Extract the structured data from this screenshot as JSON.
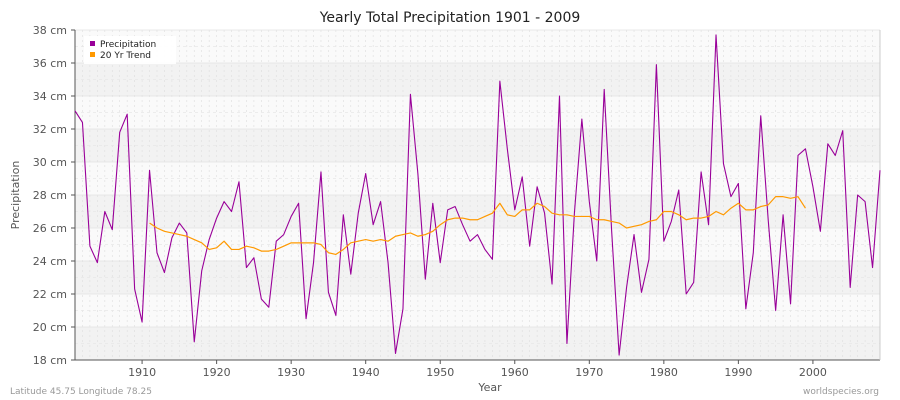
{
  "chart_data": {
    "type": "line",
    "title": "Yearly Total Precipitation 1901 - 2009",
    "xlabel": "Year",
    "ylabel": "Precipitation",
    "xlim": [
      1901,
      2009
    ],
    "ylim": [
      18,
      38
    ],
    "yticks": [
      18,
      20,
      22,
      24,
      26,
      28,
      30,
      32,
      34,
      36,
      38
    ],
    "ytick_labels": [
      "18 cm",
      "20 cm",
      "22 cm",
      "24 cm",
      "26 cm",
      "28 cm",
      "30 cm",
      "32 cm",
      "34 cm",
      "36 cm",
      "38 cm"
    ],
    "xticks": [
      1910,
      1920,
      1930,
      1940,
      1950,
      1960,
      1970,
      1980,
      1990,
      2000
    ],
    "xtick_labels": [
      "1910",
      "1920",
      "1930",
      "1940",
      "1950",
      "1960",
      "1970",
      "1980",
      "1990",
      "2000"
    ],
    "grid": true,
    "legend_position": "top-left",
    "series": [
      {
        "name": "Precipitation",
        "color": "#990099",
        "x": [
          1901,
          1902,
          1903,
          1904,
          1905,
          1906,
          1907,
          1908,
          1909,
          1910,
          1911,
          1912,
          1913,
          1914,
          1915,
          1916,
          1917,
          1918,
          1919,
          1920,
          1921,
          1922,
          1923,
          1924,
          1925,
          1926,
          1927,
          1928,
          1929,
          1930,
          1931,
          1932,
          1933,
          1934,
          1935,
          1936,
          1937,
          1938,
          1939,
          1940,
          1941,
          1942,
          1943,
          1944,
          1945,
          1946,
          1947,
          1948,
          1949,
          1950,
          1951,
          1952,
          1953,
          1954,
          1955,
          1956,
          1957,
          1958,
          1959,
          1960,
          1961,
          1962,
          1963,
          1964,
          1965,
          1966,
          1967,
          1968,
          1969,
          1970,
          1971,
          1972,
          1973,
          1974,
          1975,
          1976,
          1977,
          1978,
          1979,
          1980,
          1981,
          1982,
          1983,
          1984,
          1985,
          1986,
          1987,
          1988,
          1989,
          1990,
          1991,
          1992,
          1993,
          1994,
          1995,
          1996,
          1997,
          1998,
          1999,
          2000,
          2001,
          2002,
          2003,
          2004,
          2005,
          2006,
          2007,
          2008,
          2009
        ],
        "values": [
          33.1,
          32.4,
          24.9,
          23.9,
          27.0,
          25.9,
          31.8,
          32.9,
          22.3,
          20.3,
          29.5,
          24.5,
          23.3,
          25.4,
          26.3,
          25.7,
          19.1,
          23.4,
          25.3,
          26.6,
          27.6,
          27.0,
          28.8,
          23.6,
          24.2,
          21.7,
          21.2,
          25.2,
          25.6,
          26.7,
          27.5,
          20.5,
          23.9,
          29.4,
          22.1,
          20.7,
          26.8,
          23.2,
          26.9,
          29.3,
          26.2,
          27.6,
          23.9,
          18.4,
          21.1,
          34.1,
          29.3,
          22.9,
          27.5,
          23.9,
          27.1,
          27.3,
          26.2,
          25.2,
          25.6,
          24.7,
          24.1,
          34.9,
          30.8,
          27.1,
          29.1,
          24.9,
          28.5,
          26.9,
          22.6,
          34.0,
          19.0,
          26.9,
          32.6,
          27.6,
          24.0,
          34.4,
          25.8,
          18.3,
          22.4,
          25.6,
          22.1,
          24.1,
          35.9,
          25.2,
          26.4,
          28.3,
          22.0,
          22.7,
          29.4,
          26.2,
          37.7,
          29.9,
          27.9,
          28.7,
          21.1,
          24.5,
          32.8,
          26.5,
          21.0,
          26.8,
          21.4,
          30.4,
          30.8,
          28.5,
          25.8,
          31.1,
          30.4,
          31.9,
          22.4,
          28.0,
          27.6,
          23.6,
          29.5
        ]
      },
      {
        "name": "20 Yr Trend",
        "color": "#ff9900",
        "x": [
          1911,
          1912,
          1913,
          1914,
          1915,
          1916,
          1917,
          1918,
          1919,
          1920,
          1921,
          1922,
          1923,
          1924,
          1925,
          1926,
          1927,
          1928,
          1929,
          1930,
          1931,
          1932,
          1933,
          1934,
          1935,
          1936,
          1937,
          1938,
          1939,
          1940,
          1941,
          1942,
          1943,
          1944,
          1945,
          1946,
          1947,
          1948,
          1949,
          1950,
          1951,
          1952,
          1953,
          1954,
          1955,
          1956,
          1957,
          1958,
          1959,
          1960,
          1961,
          1962,
          1963,
          1964,
          1965,
          1966,
          1967,
          1968,
          1969,
          1970,
          1971,
          1972,
          1973,
          1974,
          1975,
          1976,
          1977,
          1978,
          1979,
          1980,
          1981,
          1982,
          1983,
          1984,
          1985,
          1986,
          1987,
          1988,
          1989,
          1990,
          1991,
          1992,
          1993,
          1994,
          1995,
          1996,
          1997,
          1998,
          1999
        ],
        "values": [
          26.3,
          26.0,
          25.8,
          25.7,
          25.6,
          25.5,
          25.3,
          25.1,
          24.7,
          24.8,
          25.2,
          24.7,
          24.7,
          24.9,
          24.8,
          24.6,
          24.6,
          24.7,
          24.9,
          25.1,
          25.1,
          25.1,
          25.1,
          25.0,
          24.5,
          24.4,
          24.7,
          25.1,
          25.2,
          25.3,
          25.2,
          25.3,
          25.2,
          25.5,
          25.6,
          25.7,
          25.5,
          25.6,
          25.8,
          26.2,
          26.5,
          26.6,
          26.6,
          26.5,
          26.5,
          26.7,
          26.9,
          27.5,
          26.8,
          26.7,
          27.1,
          27.1,
          27.5,
          27.3,
          26.9,
          26.8,
          26.8,
          26.7,
          26.7,
          26.7,
          26.5,
          26.5,
          26.4,
          26.3,
          26.0,
          26.1,
          26.2,
          26.4,
          26.5,
          27.0,
          27.0,
          26.8,
          26.5,
          26.6,
          26.6,
          26.7,
          27.0,
          26.8,
          27.2,
          27.5,
          27.1,
          27.1,
          27.3,
          27.4,
          27.9,
          27.9,
          27.8,
          27.9,
          27.2
        ]
      }
    ],
    "footer_left": "Latitude 45.75 Longitude 78.25",
    "footer_right": "worldspecies.org"
  }
}
